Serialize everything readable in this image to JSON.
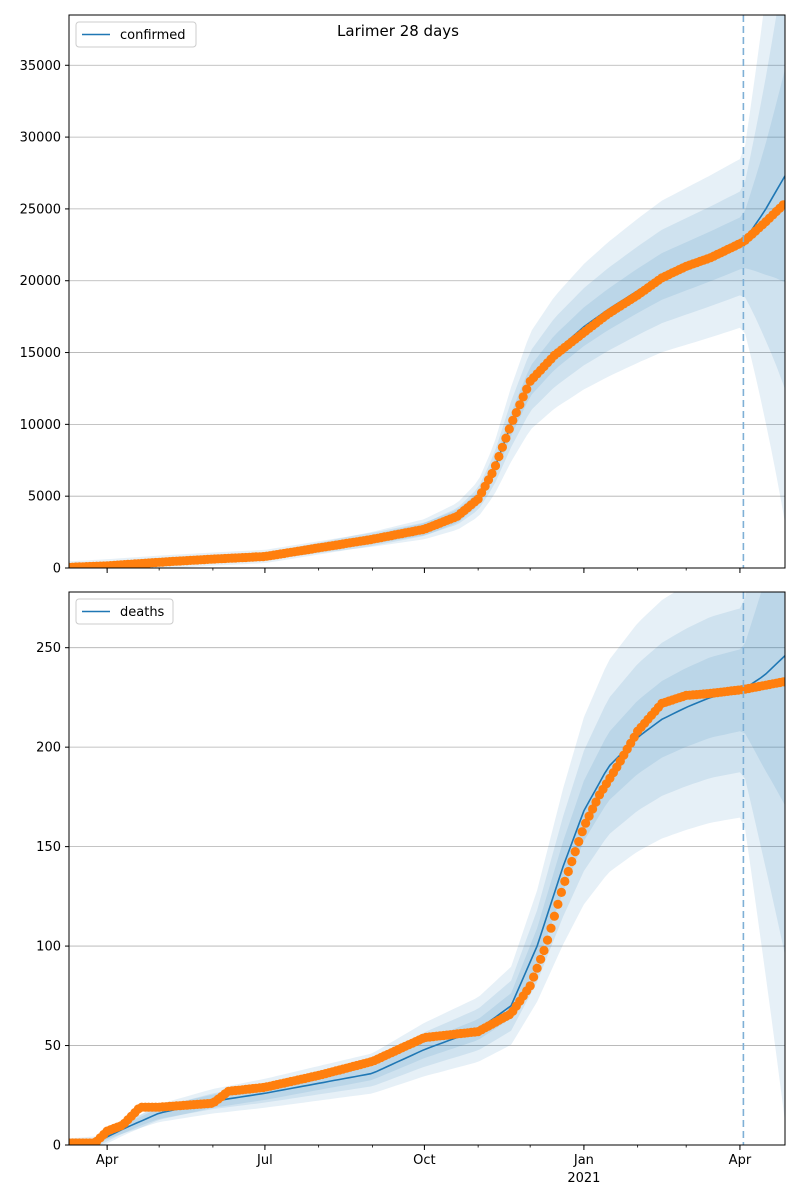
{
  "figure": {
    "title": "Larimer 28 days"
  },
  "colors": {
    "median_line": "#1f77b4",
    "observed_points": "#ff7f0e",
    "band": "#1f77b4",
    "forecast_marker": "#7fb0d6",
    "grid": "#b0b0b0"
  },
  "x_axis": {
    "start_date": "2020-03-10",
    "end_date": "2021-04-27",
    "tick_labels": [
      {
        "date": "2020-04-01",
        "label": "Apr"
      },
      {
        "date": "2020-07-01",
        "label": "Jul"
      },
      {
        "date": "2020-10-01",
        "label": "Oct"
      },
      {
        "date": "2021-01-01",
        "label": "Jan"
      },
      {
        "date": "2021-04-01",
        "label": "Apr"
      }
    ],
    "year_label": "2021",
    "forecast_start_date": "2021-04-03"
  },
  "chart_data": [
    {
      "type": "line",
      "legend": "confirmed",
      "legend_placement": "top-left",
      "grid": "horizontal",
      "ylim": [
        0,
        38500
      ],
      "yticks": [
        0,
        5000,
        10000,
        15000,
        20000,
        25000,
        30000,
        35000
      ],
      "median": {
        "x": [
          "2020-03-10",
          "2020-04-01",
          "2020-05-01",
          "2020-06-01",
          "2020-07-01",
          "2020-08-01",
          "2020-09-01",
          "2020-10-01",
          "2020-10-20",
          "2020-11-01",
          "2020-11-10",
          "2020-11-20",
          "2020-12-01",
          "2020-12-15",
          "2021-01-01",
          "2021-01-15",
          "2021-02-01",
          "2021-02-15",
          "2021-03-01",
          "2021-03-15",
          "2021-04-03",
          "2021-04-15",
          "2021-04-27"
        ],
        "y": [
          0,
          150,
          400,
          620,
          800,
          1400,
          2000,
          2700,
          3600,
          4800,
          6800,
          10000,
          13000,
          15000,
          16800,
          18000,
          19300,
          20300,
          21000,
          21700,
          22700,
          24800,
          27300
        ]
      },
      "band_half_width_fraction": [
        0.08,
        0.16,
        0.26
      ],
      "observed": {
        "x": [
          "2020-03-10",
          "2020-04-01",
          "2020-05-01",
          "2020-06-01",
          "2020-07-01",
          "2020-08-01",
          "2020-09-01",
          "2020-10-01",
          "2020-10-20",
          "2020-11-01",
          "2020-11-10",
          "2020-11-20",
          "2020-12-01",
          "2020-12-15",
          "2021-01-01",
          "2021-01-15",
          "2021-02-01",
          "2021-02-15",
          "2021-03-01",
          "2021-03-15",
          "2021-04-03",
          "2021-04-15",
          "2021-04-27"
        ],
        "y": [
          50,
          150,
          400,
          620,
          800,
          1400,
          2000,
          2700,
          3600,
          4800,
          6800,
          10000,
          13000,
          14800,
          16400,
          17700,
          19000,
          20200,
          21000,
          21600,
          22700,
          24000,
          25400
        ]
      }
    },
    {
      "type": "line",
      "legend": "deaths",
      "legend_placement": "top-left",
      "grid": "horizontal",
      "ylim": [
        0,
        278
      ],
      "yticks": [
        0,
        50,
        100,
        150,
        200,
        250
      ],
      "median": {
        "x": [
          "2020-03-10",
          "2020-03-25",
          "2020-04-10",
          "2020-05-01",
          "2020-06-01",
          "2020-07-01",
          "2020-08-01",
          "2020-09-01",
          "2020-10-01",
          "2020-11-01",
          "2020-11-20",
          "2020-12-05",
          "2020-12-20",
          "2021-01-01",
          "2021-01-15",
          "2021-02-01",
          "2021-02-15",
          "2021-03-01",
          "2021-03-15",
          "2021-04-03",
          "2021-04-15",
          "2021-04-27"
        ],
        "y": [
          0,
          1,
          8,
          16,
          22,
          26,
          31,
          36,
          48,
          58,
          70,
          100,
          140,
          168,
          190,
          205,
          214,
          220,
          225,
          229,
          236,
          246
        ]
      },
      "band_half_width_fraction": [
        0.09,
        0.18,
        0.28
      ],
      "observed": {
        "x": [
          "2020-03-10",
          "2020-03-25",
          "2020-04-01",
          "2020-04-10",
          "2020-04-20",
          "2020-05-01",
          "2020-06-01",
          "2020-06-10",
          "2020-07-01",
          "2020-08-01",
          "2020-09-01",
          "2020-10-01",
          "2020-11-01",
          "2020-11-20",
          "2020-12-01",
          "2020-12-10",
          "2020-12-20",
          "2021-01-01",
          "2021-01-10",
          "2021-01-20",
          "2021-02-01",
          "2021-02-15",
          "2021-03-01",
          "2021-03-15",
          "2021-04-03",
          "2021-04-15",
          "2021-04-27"
        ],
        "y": [
          1,
          1,
          7,
          10,
          19,
          19,
          21,
          27,
          29,
          35,
          42,
          54,
          57,
          66,
          80,
          100,
          130,
          160,
          176,
          190,
          208,
          222,
          226,
          227,
          229,
          231,
          233
        ]
      }
    }
  ]
}
